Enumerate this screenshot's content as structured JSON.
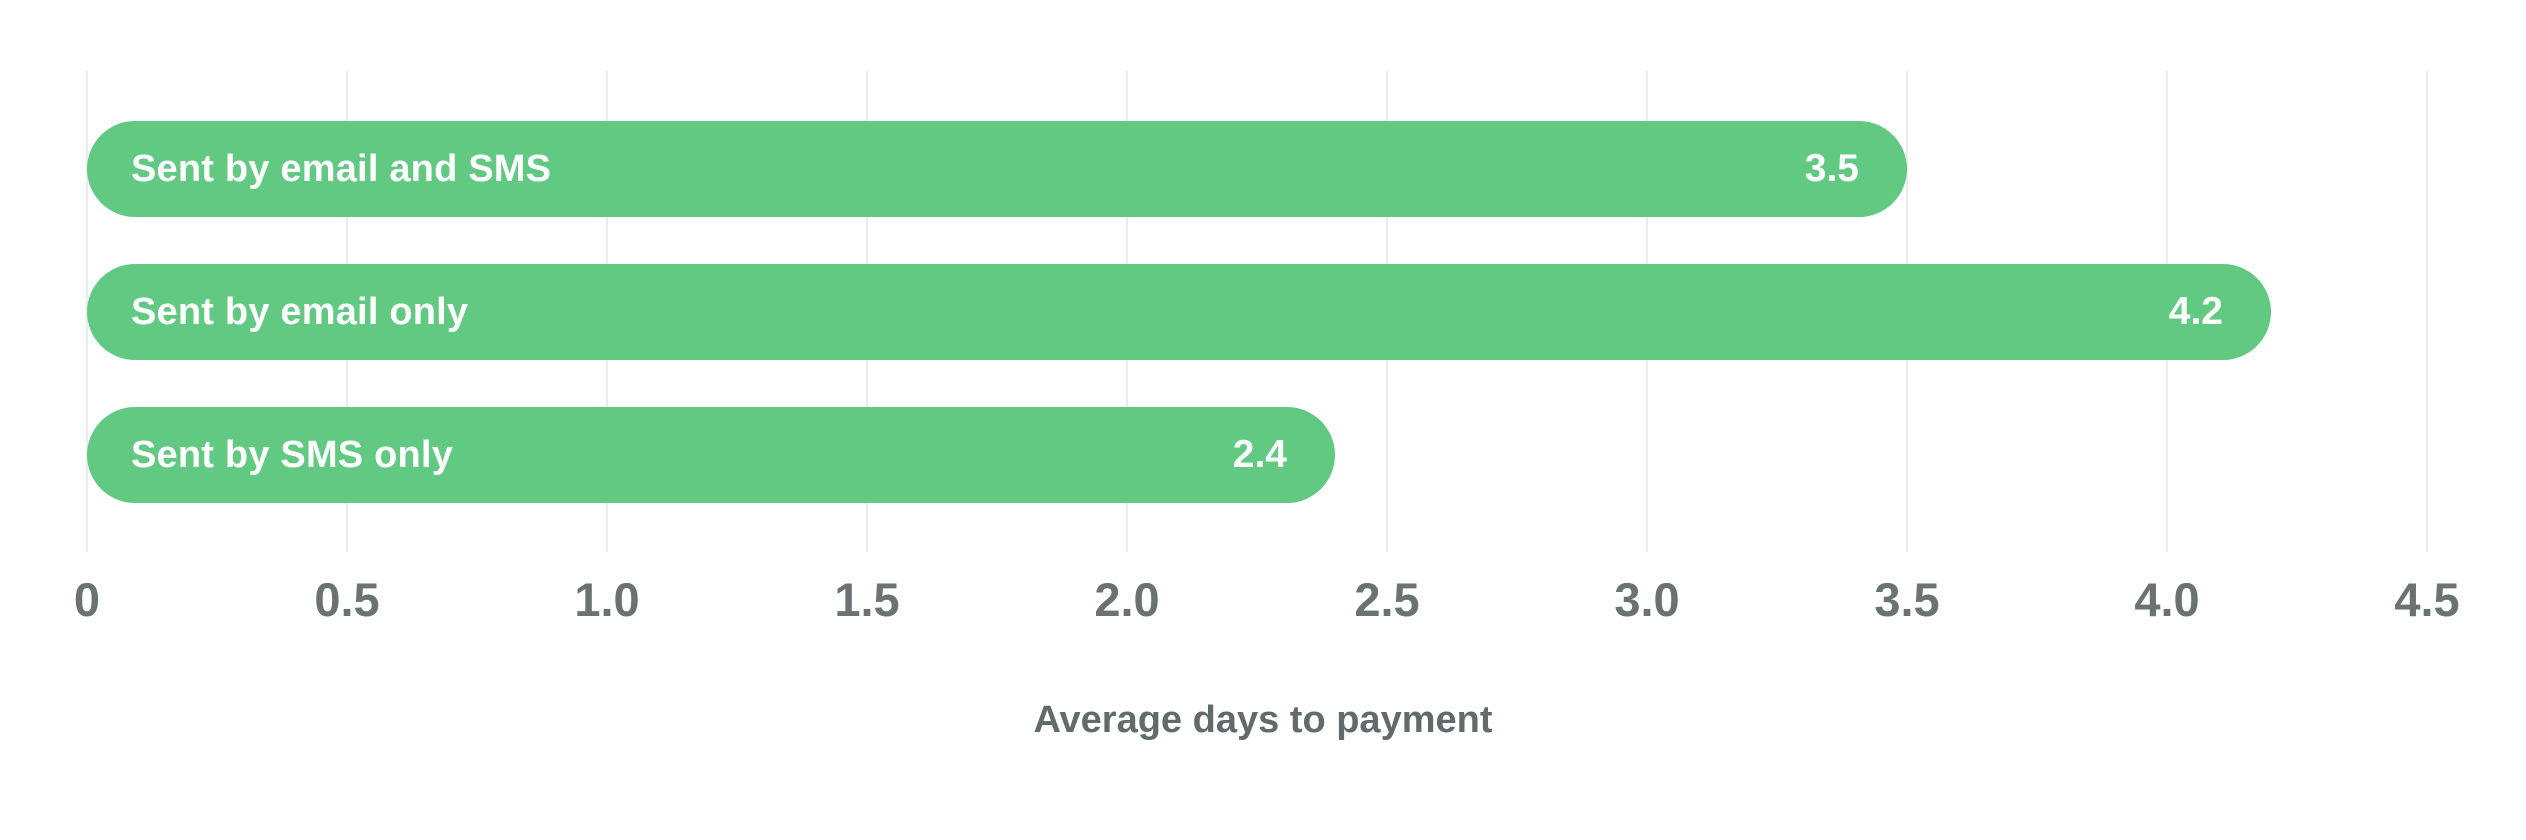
{
  "chart_data": {
    "type": "bar",
    "orientation": "horizontal",
    "categories": [
      "Sent by email and SMS",
      "Sent by email only",
      "Sent by SMS only"
    ],
    "values": [
      3.5,
      4.2,
      2.4
    ],
    "value_labels": [
      "3.5",
      "4.2",
      "2.4"
    ],
    "xlabel": "Average days to payment",
    "ylabel": "",
    "xlim": [
      0,
      4.5
    ],
    "tick_labels": [
      "0",
      "0.5",
      "1.0",
      "1.5",
      "2.0",
      "2.5",
      "3.0",
      "3.5",
      "4.0",
      "4.5"
    ],
    "grid": "vertical-only",
    "legend": "none",
    "colors": {
      "bar": "#61c981",
      "bar-text": "#ffffff",
      "grid": "#eaecec",
      "tick": "#6b7272",
      "label": "#626b6b",
      "bg": "#ffffff"
    }
  }
}
